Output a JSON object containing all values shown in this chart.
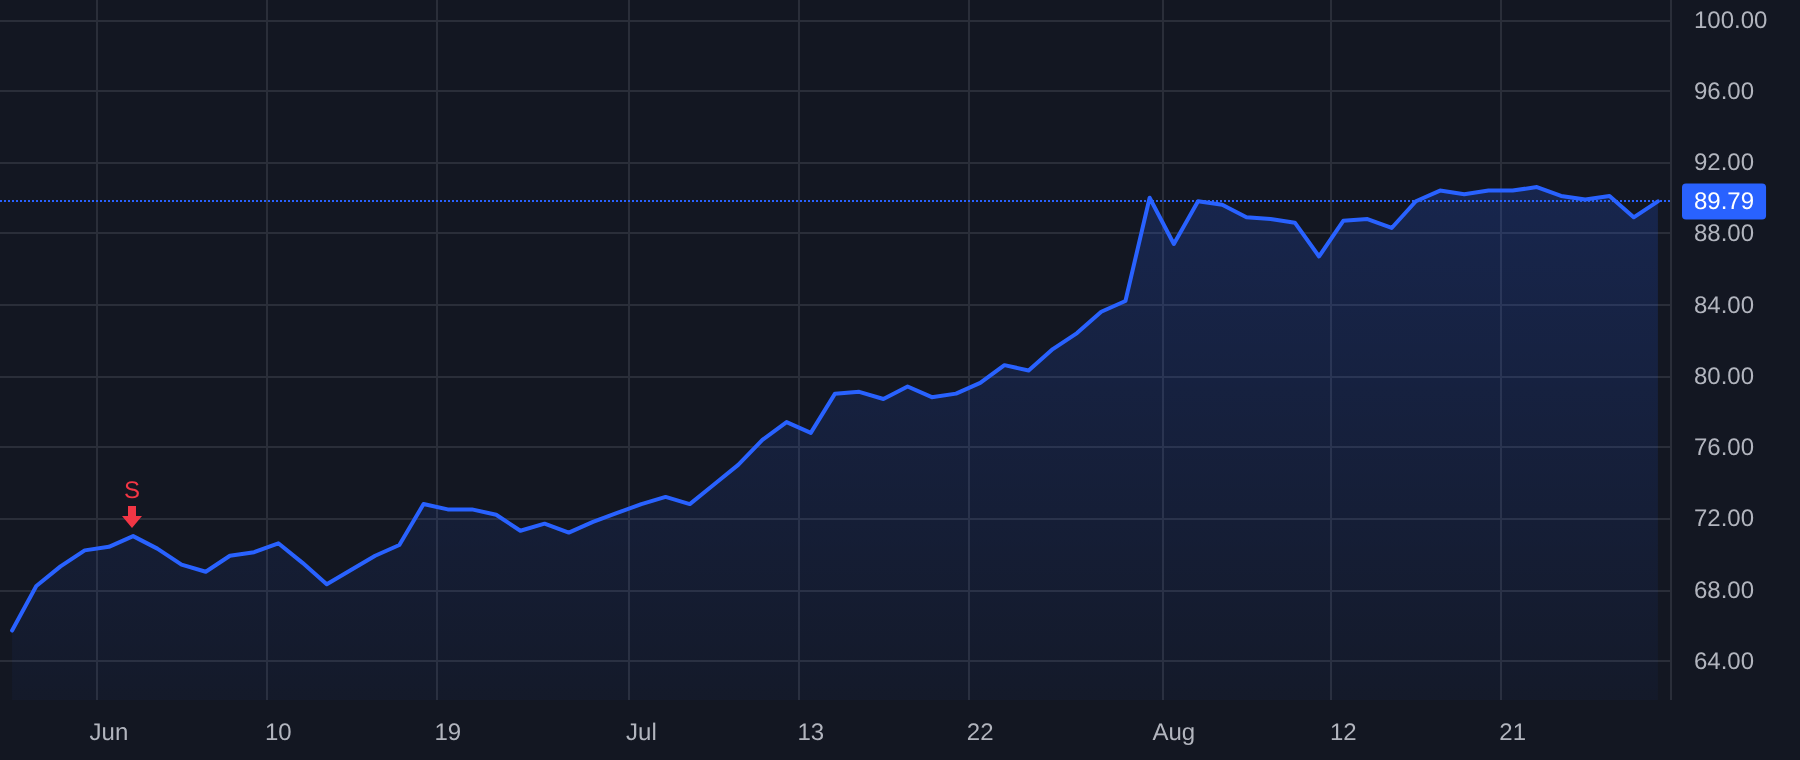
{
  "chart_data": {
    "type": "area",
    "categories": [
      null,
      null,
      null,
      null,
      "Jun",
      null,
      null,
      null,
      null,
      null,
      null,
      "10",
      null,
      null,
      null,
      null,
      null,
      null,
      "19",
      null,
      null,
      null,
      null,
      null,
      null,
      null,
      "Jul",
      null,
      null,
      null,
      null,
      null,
      null,
      "13",
      null,
      null,
      null,
      null,
      null,
      null,
      "22",
      null,
      null,
      null,
      null,
      null,
      null,
      null,
      "Aug",
      null,
      null,
      null,
      null,
      null,
      null,
      "12",
      null,
      null,
      null,
      null,
      null,
      null,
      "21",
      null,
      null,
      null,
      null,
      null,
      null
    ],
    "series": [
      {
        "color": "#2962ff",
        "values": [
          65.7,
          68.2,
          69.3,
          70.2,
          70.4,
          71.0,
          70.3,
          69.4,
          69.0,
          69.9,
          70.1,
          70.6,
          69.5,
          68.3,
          69.1,
          69.9,
          70.5,
          72.8,
          72.5,
          72.5,
          72.2,
          71.3,
          71.7,
          71.2,
          71.8,
          72.3,
          72.8,
          73.2,
          72.8,
          73.9,
          75.0,
          76.4,
          77.4,
          76.8,
          79.0,
          79.1,
          78.7,
          79.4,
          78.8,
          79.0,
          79.6,
          80.6,
          80.3,
          81.5,
          82.4,
          83.6,
          84.2,
          90.0,
          87.4,
          89.8,
          89.6,
          88.9,
          88.8,
          88.6,
          86.7,
          88.7,
          88.8,
          88.3,
          89.8,
          90.4,
          90.2,
          90.4,
          90.4,
          90.6,
          90.1,
          89.9,
          90.1,
          88.9,
          89.79
        ]
      }
    ],
    "ylim": [
      61.8,
      101.1
    ],
    "yticks": [
      {
        "value": 64,
        "label": "64.00"
      },
      {
        "value": 68,
        "label": "68.00"
      },
      {
        "value": 72,
        "label": "72.00"
      },
      {
        "value": 76,
        "label": "76.00"
      },
      {
        "value": 80,
        "label": "80.00"
      },
      {
        "value": 84,
        "label": "84.00"
      },
      {
        "value": 88,
        "label": "88.00"
      },
      {
        "value": 92,
        "label": "92.00"
      },
      {
        "value": 96,
        "label": "96.00"
      },
      {
        "value": 100,
        "label": "100.00"
      }
    ],
    "grid": true,
    "marker": "none",
    "line_style": "solid",
    "ref_lines": [
      {
        "axis": "y",
        "value": 89.79,
        "label": "89.79",
        "color": "#2962ff",
        "line_style": "dotted"
      }
    ],
    "annotations": [
      "S"
    ]
  }
}
